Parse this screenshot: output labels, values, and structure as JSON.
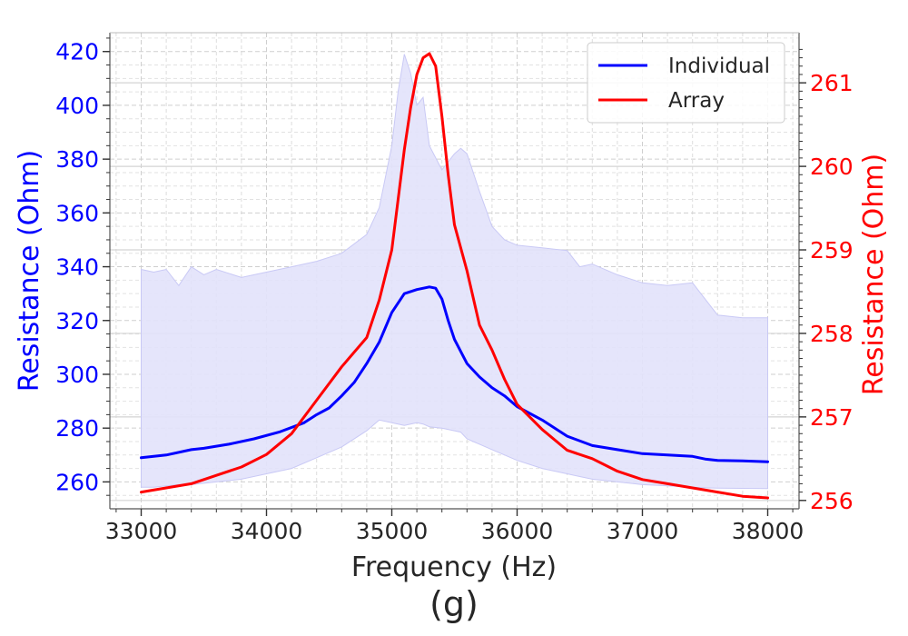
{
  "chart_data": {
    "type": "line",
    "caption": "(g)",
    "xlabel": "Frequency (Hz)",
    "ylabel_left": "Resistance (Ohm)",
    "ylabel_right": "Resistance (Ohm)",
    "xlim": [
      32750,
      38250
    ],
    "ylim_left": [
      250,
      427
    ],
    "ylim_right": [
      255.9,
      261.6
    ],
    "x_ticks": [
      33000,
      34000,
      35000,
      36000,
      37000,
      38000
    ],
    "y_left_ticks": [
      260,
      280,
      300,
      320,
      340,
      360,
      380,
      400,
      420
    ],
    "y_right_ticks": [
      256,
      257,
      258,
      259,
      260,
      261
    ],
    "legend_position": "top-right",
    "colors": {
      "individual": "#0000ff",
      "array": "#ff0000",
      "band": "#e2e2fb"
    },
    "series": [
      {
        "name": "Individual",
        "axis": "left",
        "x": [
          33000,
          33200,
          33400,
          33500,
          33700,
          33900,
          34100,
          34300,
          34400,
          34500,
          34600,
          34700,
          34800,
          34900,
          35000,
          35100,
          35200,
          35300,
          35350,
          35400,
          35450,
          35500,
          35600,
          35700,
          35800,
          35900,
          36000,
          36200,
          36400,
          36600,
          36800,
          37000,
          37200,
          37400,
          37500,
          37600,
          37800,
          38000
        ],
        "values": [
          269,
          270,
          272,
          272.5,
          274,
          276,
          278.5,
          282,
          285,
          287.5,
          292,
          297,
          304,
          312,
          323,
          330,
          331.5,
          332.5,
          332,
          328,
          320,
          313,
          304,
          299,
          295,
          292,
          288,
          283,
          277,
          273.5,
          272,
          270.5,
          270,
          269.5,
          268.5,
          268,
          267.8,
          267.5
        ]
      },
      {
        "name": "Array",
        "axis": "right",
        "x": [
          33000,
          33200,
          33400,
          33600,
          33800,
          34000,
          34200,
          34400,
          34600,
          34800,
          34900,
          35000,
          35050,
          35100,
          35150,
          35200,
          35250,
          35300,
          35350,
          35400,
          35450,
          35500,
          35600,
          35700,
          35800,
          35900,
          36000,
          36200,
          36400,
          36600,
          36800,
          37000,
          37200,
          37400,
          37600,
          37800,
          38000
        ],
        "values": [
          256.1,
          256.15,
          256.2,
          256.3,
          256.4,
          256.55,
          256.8,
          257.2,
          257.6,
          257.95,
          258.4,
          259.0,
          259.6,
          260.2,
          260.7,
          261.1,
          261.3,
          261.35,
          261.2,
          260.6,
          259.9,
          259.3,
          258.75,
          258.1,
          257.8,
          257.45,
          257.15,
          256.85,
          256.6,
          256.5,
          256.35,
          256.25,
          256.2,
          256.15,
          256.1,
          256.05,
          256.03
        ]
      }
    ],
    "band": {
      "name": "Individual range",
      "axis": "left",
      "x": [
        33000,
        33100,
        33200,
        33300,
        33400,
        33500,
        33600,
        33800,
        34000,
        34200,
        34400,
        34600,
        34800,
        34900,
        35000,
        35050,
        35100,
        35150,
        35200,
        35250,
        35300,
        35400,
        35500,
        35550,
        35600,
        35650,
        35700,
        35800,
        35900,
        36000,
        36200,
        36400,
        36500,
        36600,
        36800,
        37000,
        37200,
        37400,
        37500,
        37600,
        37800,
        38000
      ],
      "upper": [
        339,
        338,
        339,
        333,
        340,
        337,
        339,
        336,
        338,
        340,
        342,
        345,
        352,
        362,
        385,
        405,
        419,
        412,
        400,
        403,
        385,
        376,
        382,
        384,
        382,
        375,
        368,
        355,
        350,
        348,
        347,
        346,
        340,
        341,
        337,
        334,
        333,
        334,
        328,
        322,
        321,
        321
      ],
      "lower": [
        258,
        258,
        258.5,
        259,
        259,
        259.5,
        260,
        261,
        263,
        265,
        269,
        273,
        279,
        283,
        282,
        281.5,
        281,
        281.5,
        282,
        281.5,
        280.5,
        280,
        279,
        278.5,
        276,
        275,
        274,
        272,
        270,
        268,
        265,
        263,
        262,
        261,
        260,
        259,
        258.5,
        258,
        257.8,
        257.7,
        257.6,
        257.5
      ]
    },
    "legend": [
      "Individual",
      "Array"
    ]
  }
}
